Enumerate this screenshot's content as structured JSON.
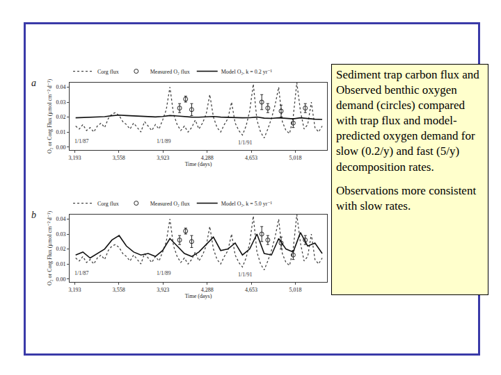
{
  "chart_data": [
    {
      "type": "line",
      "title": "a",
      "x_label": "Time (days)",
      "y_label": "O₂ or Corg Flux (µmol cm⁻² d⁻¹)",
      "xlim": [
        3150,
        5280
      ],
      "xticks": [
        {
          "value": 3193,
          "label": "3,193"
        },
        {
          "value": 3558,
          "label": "3,558"
        },
        {
          "value": 3923,
          "label": "3,923"
        },
        {
          "value": 4288,
          "label": "4,288"
        },
        {
          "value": 4653,
          "label": "4,653"
        },
        {
          "value": 5018,
          "label": "5,018"
        }
      ],
      "ylim": [
        -0.002,
        0.043
      ],
      "yticks": [
        {
          "value": 0,
          "label": "0.00"
        },
        {
          "value": 0.01,
          "label": "0.01"
        },
        {
          "value": 0.02,
          "label": "0.02"
        },
        {
          "value": 0.03,
          "label": "0.03"
        },
        {
          "value": 0.04,
          "label": "0.04"
        }
      ],
      "grid": false,
      "legend": "top",
      "annotations": [
        {
          "text": "1/1/87",
          "x": 3250,
          "y": 0.004
        },
        {
          "text": "1/1/89",
          "x": 3930,
          "y": 0.004
        },
        {
          "text": "1/1/91",
          "x": 4600,
          "y": 0.003
        }
      ],
      "series": [
        {
          "name": "Corg flux",
          "type": "line",
          "line_style": "dotted",
          "color": "#444444",
          "x": [
            3200,
            3230,
            3260,
            3290,
            3320,
            3350,
            3380,
            3410,
            3440,
            3470,
            3500,
            3530,
            3560,
            3590,
            3620,
            3650,
            3680,
            3710,
            3740,
            3770,
            3800,
            3830,
            3860,
            3890,
            3920,
            3950,
            3980,
            4010,
            4040,
            4070,
            4100,
            4130,
            4160,
            4190,
            4220,
            4250,
            4280,
            4310,
            4340,
            4370,
            4400,
            4430,
            4460,
            4490,
            4520,
            4550,
            4580,
            4610,
            4640,
            4670,
            4700,
            4730,
            4760,
            4790,
            4820,
            4850,
            4880,
            4910,
            4940,
            4970,
            5000,
            5030,
            5060,
            5090,
            5120,
            5150,
            5180,
            5210,
            5240
          ],
          "values": [
            0.014,
            0.012,
            0.015,
            0.011,
            0.013,
            0.01,
            0.014,
            0.016,
            0.013,
            0.019,
            0.022,
            0.023,
            0.021,
            0.017,
            0.015,
            0.012,
            0.016,
            0.013,
            0.01,
            0.017,
            0.014,
            0.011,
            0.015,
            0.012,
            0.018,
            0.025,
            0.04,
            0.022,
            0.015,
            0.011,
            0.014,
            0.01,
            0.013,
            0.018,
            0.012,
            0.016,
            0.022,
            0.035,
            0.02,
            0.013,
            0.01,
            0.015,
            0.019,
            0.03,
            0.016,
            0.011,
            0.008,
            0.014,
            0.024,
            0.042,
            0.018,
            0.01,
            0.006,
            0.012,
            0.019,
            0.028,
            0.04,
            0.017,
            0.011,
            0.009,
            0.02,
            0.043,
            0.024,
            0.012,
            0.015,
            0.03,
            0.013,
            0.01,
            0.014
          ]
        },
        {
          "name": "Measured O₂ flux",
          "type": "scatter",
          "marker": "circle-open",
          "color": "#222222",
          "x": [
            4060,
            4110,
            4160,
            4740,
            4790,
            4900,
            5000,
            5100
          ],
          "values": [
            0.026,
            0.032,
            0.025,
            0.03,
            0.026,
            0.024,
            0.016,
            0.026
          ],
          "error": [
            0.003,
            0.002,
            0.004,
            0.005,
            0.003,
            0.004,
            0.003,
            0.003
          ]
        },
        {
          "name": "Model O₂, k = 0.2 yr⁻¹",
          "type": "line",
          "line_style": "solid",
          "color": "#111111",
          "x": [
            3200,
            3260,
            3320,
            3380,
            3440,
            3500,
            3560,
            3620,
            3680,
            3740,
            3800,
            3860,
            3920,
            3980,
            4040,
            4100,
            4160,
            4220,
            4280,
            4340,
            4400,
            4460,
            4520,
            4580,
            4640,
            4700,
            4760,
            4820,
            4880,
            4940,
            5000,
            5060,
            5120,
            5180,
            5240
          ],
          "values": [
            0.0195,
            0.0197,
            0.0196,
            0.0199,
            0.0203,
            0.0209,
            0.0213,
            0.021,
            0.0207,
            0.0204,
            0.0202,
            0.0201,
            0.0204,
            0.021,
            0.0207,
            0.0203,
            0.02,
            0.0199,
            0.0201,
            0.0204,
            0.02,
            0.0198,
            0.0199,
            0.0195,
            0.0196,
            0.02,
            0.0193,
            0.0191,
            0.0195,
            0.019,
            0.0188,
            0.0195,
            0.0189,
            0.0186,
            0.0184
          ]
        }
      ]
    },
    {
      "type": "line",
      "title": "b",
      "x_label": "Time (days)",
      "y_label": "O₂ or Corg Flux (µmol cm⁻² d⁻¹)",
      "xlim": [
        3150,
        5280
      ],
      "xticks": [
        {
          "value": 3193,
          "label": "3,193"
        },
        {
          "value": 3558,
          "label": "3,558"
        },
        {
          "value": 3923,
          "label": "3,923"
        },
        {
          "value": 4288,
          "label": "4,288"
        },
        {
          "value": 4653,
          "label": "4,653"
        },
        {
          "value": 5018,
          "label": "5,018"
        }
      ],
      "ylim": [
        -0.002,
        0.043
      ],
      "yticks": [
        {
          "value": 0,
          "label": "0.00"
        },
        {
          "value": 0.01,
          "label": "0.01"
        },
        {
          "value": 0.02,
          "label": "0.02"
        },
        {
          "value": 0.03,
          "label": "0.03"
        },
        {
          "value": 0.04,
          "label": "0.04"
        }
      ],
      "grid": false,
      "legend": "top",
      "annotations": [
        {
          "text": "1/1/87",
          "x": 3250,
          "y": 0.004
        },
        {
          "text": "1/1/89",
          "x": 3930,
          "y": 0.004
        },
        {
          "text": "1/1/91",
          "x": 4600,
          "y": 0.003
        }
      ],
      "series": [
        {
          "name": "Corg flux",
          "type": "line",
          "line_style": "dotted",
          "color": "#444444",
          "x": [
            3200,
            3230,
            3260,
            3290,
            3320,
            3350,
            3380,
            3410,
            3440,
            3470,
            3500,
            3530,
            3560,
            3590,
            3620,
            3650,
            3680,
            3710,
            3740,
            3770,
            3800,
            3830,
            3860,
            3890,
            3920,
            3950,
            3980,
            4010,
            4040,
            4070,
            4100,
            4130,
            4160,
            4190,
            4220,
            4250,
            4280,
            4310,
            4340,
            4370,
            4400,
            4430,
            4460,
            4490,
            4520,
            4550,
            4580,
            4610,
            4640,
            4670,
            4700,
            4730,
            4760,
            4790,
            4820,
            4850,
            4880,
            4910,
            4940,
            4970,
            5000,
            5030,
            5060,
            5090,
            5120,
            5150,
            5180,
            5210,
            5240
          ],
          "values": [
            0.014,
            0.012,
            0.015,
            0.011,
            0.013,
            0.01,
            0.014,
            0.016,
            0.013,
            0.019,
            0.022,
            0.023,
            0.021,
            0.017,
            0.015,
            0.012,
            0.016,
            0.013,
            0.01,
            0.017,
            0.014,
            0.011,
            0.015,
            0.012,
            0.018,
            0.025,
            0.04,
            0.022,
            0.015,
            0.011,
            0.014,
            0.01,
            0.013,
            0.018,
            0.012,
            0.016,
            0.022,
            0.035,
            0.02,
            0.013,
            0.01,
            0.015,
            0.019,
            0.03,
            0.016,
            0.011,
            0.008,
            0.014,
            0.024,
            0.042,
            0.018,
            0.01,
            0.006,
            0.012,
            0.019,
            0.028,
            0.04,
            0.017,
            0.011,
            0.009,
            0.02,
            0.043,
            0.024,
            0.012,
            0.015,
            0.03,
            0.013,
            0.01,
            0.014
          ]
        },
        {
          "name": "Measured O₂ flux",
          "type": "scatter",
          "marker": "circle-open",
          "color": "#222222",
          "x": [
            4060,
            4110,
            4160,
            4740,
            4790,
            4900,
            5000,
            5100
          ],
          "values": [
            0.026,
            0.032,
            0.025,
            0.03,
            0.026,
            0.024,
            0.016,
            0.026
          ],
          "error": [
            0.003,
            0.002,
            0.004,
            0.005,
            0.003,
            0.004,
            0.003,
            0.003
          ]
        },
        {
          "name": "Model O₂, k = 5.0 yr⁻¹",
          "type": "line",
          "line_style": "solid",
          "color": "#111111",
          "x": [
            3200,
            3260,
            3320,
            3380,
            3440,
            3500,
            3560,
            3620,
            3680,
            3740,
            3800,
            3860,
            3920,
            3980,
            4040,
            4100,
            4160,
            4220,
            4280,
            4340,
            4400,
            4460,
            4520,
            4580,
            4640,
            4700,
            4760,
            4820,
            4880,
            4940,
            5000,
            5060,
            5120,
            5180,
            5240
          ],
          "values": [
            0.016,
            0.018,
            0.014,
            0.017,
            0.02,
            0.026,
            0.029,
            0.022,
            0.018,
            0.016,
            0.017,
            0.015,
            0.019,
            0.027,
            0.022,
            0.017,
            0.015,
            0.018,
            0.023,
            0.028,
            0.019,
            0.02,
            0.024,
            0.016,
            0.02,
            0.03,
            0.017,
            0.016,
            0.027,
            0.02,
            0.018,
            0.031,
            0.022,
            0.024,
            0.017
          ]
        }
      ]
    }
  ],
  "text_box": [
    "Sediment trap carbon flux and Observed benthic oxygen demand (circles) compared with trap flux and model-predicted oxygen demand for slow (0.2/y) and fast (5/y) decomposition rates.",
    "Observations more consistent with slow rates."
  ]
}
